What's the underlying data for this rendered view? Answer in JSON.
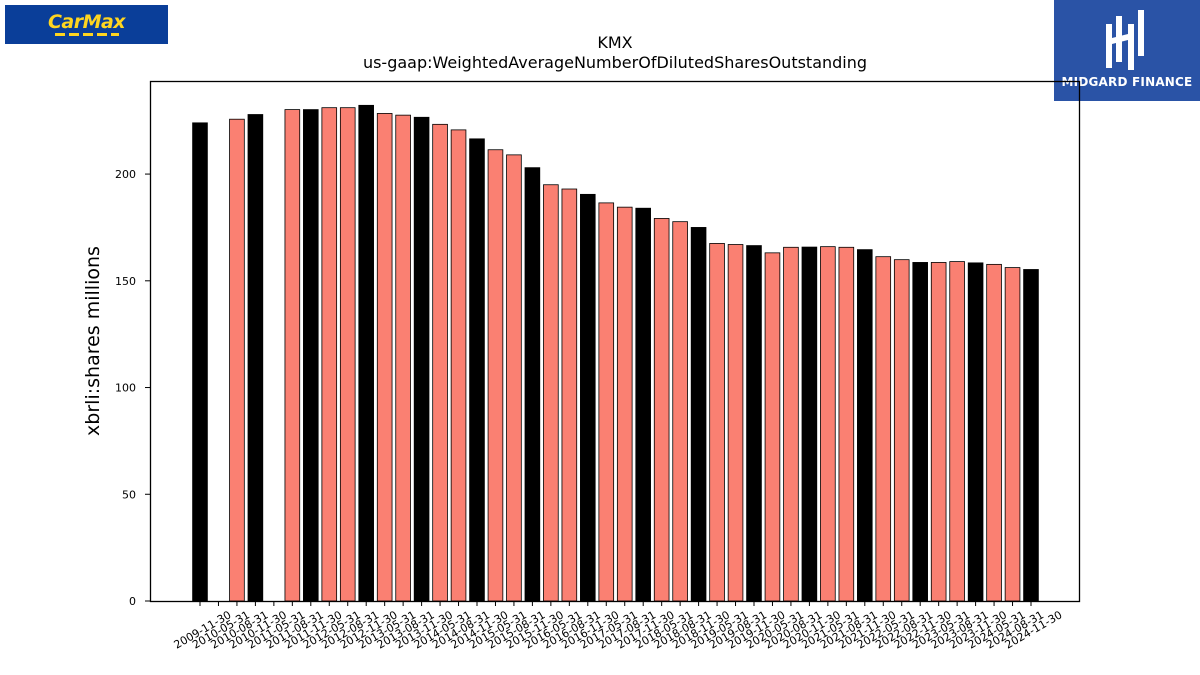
{
  "logos": {
    "left": {
      "text": "CarMax",
      "color": "#0a3e99",
      "accent": "#ffd520"
    },
    "right": {
      "text": "MIDGARD FINANCE",
      "color": "#2a53a6"
    }
  },
  "chart_data": {
    "type": "bar",
    "title": "KMX",
    "subtitle": "us-gaap:WeightedAverageNumberOfDilutedSharesOutstanding",
    "xlabel": "",
    "ylabel": "xbrli:shares millions",
    "ylim": [
      0,
      243.6
    ],
    "yticks": [
      0,
      50,
      100,
      150,
      200
    ],
    "grid": false,
    "colors": {
      "black": "#000000",
      "salmon": "#fa8072"
    },
    "categories": [
      "2009-11-30",
      "2010-05-31",
      "2010-08-31",
      "2010-11-30",
      "2011-05-31",
      "2011-08-31",
      "2011-11-30",
      "2012-05-31",
      "2012-08-31",
      "2012-11-30",
      "2013-05-31",
      "2013-08-31",
      "2013-11-30",
      "2014-05-31",
      "2014-08-31",
      "2014-11-30",
      "2015-05-31",
      "2015-08-31",
      "2015-11-30",
      "2016-05-31",
      "2016-08-31",
      "2016-11-30",
      "2017-05-31",
      "2017-08-31",
      "2017-11-30",
      "2018-05-31",
      "2018-08-31",
      "2018-11-30",
      "2019-05-31",
      "2019-08-31",
      "2019-11-30",
      "2020-05-31",
      "2020-08-31",
      "2020-11-30",
      "2021-05-31",
      "2021-08-31",
      "2021-11-30",
      "2022-05-31",
      "2022-08-31",
      "2022-11-30",
      "2023-05-31",
      "2023-08-31",
      "2023-11-30",
      "2024-05-31",
      "2024-08-31",
      "2024-11-30"
    ],
    "values": [
      224,
      null,
      225.7,
      227.9,
      null,
      230.2,
      230.2,
      231.1,
      231.1,
      232.2,
      228.4,
      227.6,
      226.6,
      223.3,
      220.7,
      216.5,
      211.4,
      209,
      203,
      195,
      193,
      190.5,
      186.5,
      184.5,
      184,
      179.2,
      177.7,
      175,
      167.5,
      167,
      166.5,
      163.1,
      165.7,
      165.8,
      166,
      165.7,
      164.6,
      161.3,
      159.9,
      158.6,
      158.6,
      159,
      158.4,
      157.7,
      156.2,
      155.3
    ],
    "bar_colors": [
      "black",
      "salmon",
      "salmon",
      "black",
      "salmon",
      "salmon",
      "black",
      "salmon",
      "salmon",
      "black",
      "salmon",
      "salmon",
      "black",
      "salmon",
      "salmon",
      "black",
      "salmon",
      "salmon",
      "black",
      "salmon",
      "salmon",
      "black",
      "salmon",
      "salmon",
      "black",
      "salmon",
      "salmon",
      "black",
      "salmon",
      "salmon",
      "black",
      "salmon",
      "salmon",
      "black",
      "salmon",
      "salmon",
      "black",
      "salmon",
      "salmon",
      "black",
      "salmon",
      "salmon",
      "black",
      "salmon",
      "salmon",
      "black"
    ]
  }
}
